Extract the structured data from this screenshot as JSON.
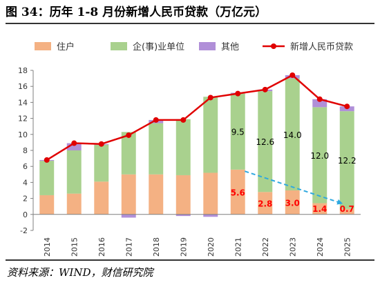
{
  "figure": {
    "title": "图 34：历年 1-8 月份新增人民币贷款（万亿元）",
    "source": "资料来源：WIND，财信研究院"
  },
  "colors": {
    "resident": "#f4b183",
    "enterprise": "#a9d18e",
    "other": "#b08fd8",
    "total_line": "#e00000",
    "resident_label": "#ff0000",
    "trend_arrow": "#2ea8e0"
  },
  "chart_data": {
    "type": "bar",
    "stacked": true,
    "categories": [
      "2014",
      "2015",
      "2016",
      "2017",
      "2018",
      "2019",
      "2020",
      "2021",
      "2022",
      "2023",
      "2024",
      "2025"
    ],
    "series": [
      {
        "name": "住户",
        "type": "bar",
        "values": [
          2.4,
          2.6,
          4.1,
          5.0,
          5.0,
          4.9,
          5.2,
          5.6,
          2.8,
          3.0,
          1.4,
          0.7
        ]
      },
      {
        "name": "企(事)业单位",
        "type": "bar",
        "values": [
          4.3,
          5.4,
          4.6,
          5.3,
          6.4,
          7.0,
          9.5,
          9.5,
          12.6,
          14.0,
          12.0,
          12.2
        ]
      },
      {
        "name": "其他",
        "type": "bar",
        "values": [
          0.1,
          0.9,
          0.1,
          -0.4,
          0.4,
          -0.2,
          -0.3,
          0.1,
          0.2,
          0.4,
          1.0,
          0.6
        ]
      },
      {
        "name": "新增人民币贷款",
        "type": "line",
        "values": [
          6.8,
          8.9,
          8.8,
          9.9,
          11.8,
          11.8,
          14.6,
          15.1,
          15.6,
          17.4,
          14.4,
          13.5
        ]
      }
    ],
    "data_labels": {
      "resident": [
        null,
        null,
        null,
        null,
        null,
        null,
        null,
        "5.6",
        "2.8",
        "3.0",
        "1.4",
        "0.7"
      ],
      "enterprise": [
        null,
        null,
        null,
        null,
        null,
        null,
        null,
        "9.5",
        "12.6",
        "14.0",
        "12.0",
        "12.2"
      ]
    },
    "ylim": [
      -2,
      18
    ],
    "yticks": [
      "-2",
      "0",
      "2",
      "4",
      "6",
      "8",
      "10",
      "12",
      "14",
      "16",
      "18"
    ],
    "legend_position": "top",
    "grid": false,
    "annotation": "dashed arrow showing downward trend of resident loans from 2021 to 2025"
  }
}
